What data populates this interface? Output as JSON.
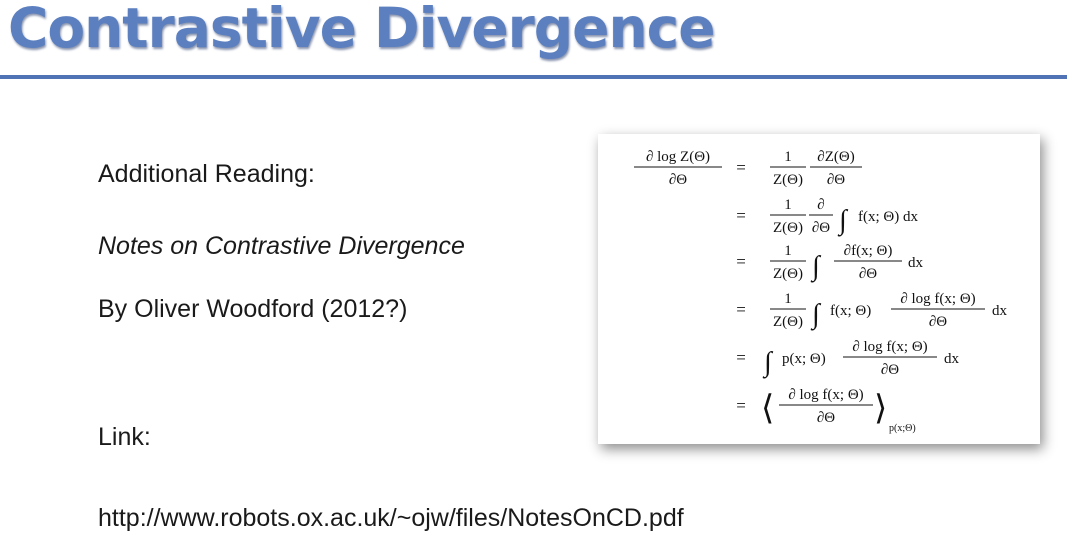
{
  "title": "Contrastive Divergence",
  "reading": {
    "heading": "Additional Reading:",
    "book": "Notes on Contrastive Divergence",
    "author": "By Oliver Woodford (2012?)",
    "link_label": "Link:",
    "url": "http://www.robots.ox.ac.uk/~ojw/files/NotesOnCD.pdf"
  },
  "equation": {
    "lhs_num": "∂ log Z(Θ)",
    "lhs_den": "∂Θ",
    "eq": "=",
    "one": "1",
    "Z": "Z(Θ)",
    "dZ_num": "∂Z(Θ)",
    "dTheta": "∂Θ",
    "partial": "∂",
    "integral": "∫",
    "f_dx": "f(x; Θ) dx",
    "df_num": "∂f(x; Θ)",
    "dx": "dx",
    "f_term": "f(x; Θ)",
    "dlogf_num": "∂ log f(x; Θ)",
    "p_term": "p(x; Θ)",
    "lang": "⟨",
    "rang": "⟩",
    "subscript": "p(x;Θ)"
  },
  "colors": {
    "title": "#5b7fbf",
    "rule": "#4f73b4"
  }
}
